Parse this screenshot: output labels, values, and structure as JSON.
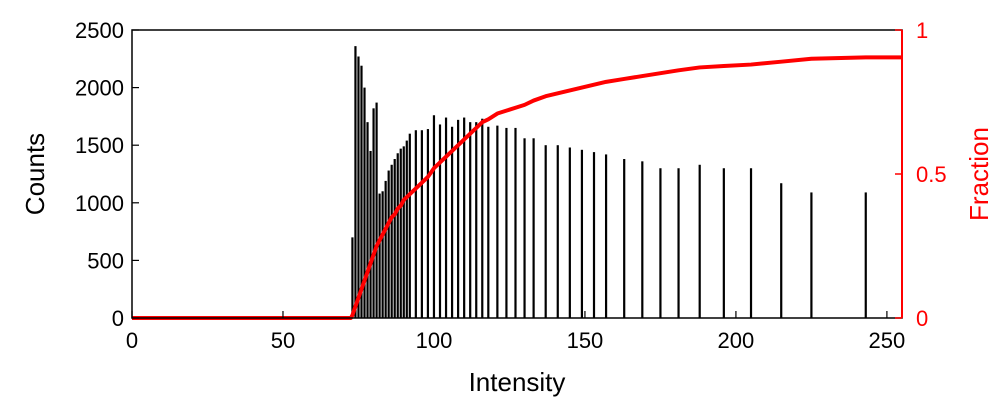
{
  "chart_data": {
    "type": "bar",
    "xlabel": "Intensity",
    "ylabel": "Counts",
    "y2label": "Fraction",
    "xlim": [
      0,
      255
    ],
    "ylim": [
      0,
      2500
    ],
    "y2lim": [
      0,
      1
    ],
    "xticks": [
      "0",
      "50",
      "100",
      "150",
      "200",
      "250"
    ],
    "yticks": [
      "0",
      "500",
      "1000",
      "1500",
      "2000",
      "2500"
    ],
    "y2ticks": [
      "0",
      "0.5",
      "1"
    ],
    "grid": false,
    "series": [
      {
        "type": "bar",
        "axis": "left",
        "color": "#000000",
        "x": [
          73,
          74,
          75,
          76,
          77,
          78,
          79,
          80,
          81,
          82,
          83,
          84,
          85,
          86,
          87,
          88,
          89,
          90,
          91,
          92,
          94,
          96,
          98,
          100,
          102,
          104,
          106,
          108,
          110,
          112,
          114,
          116,
          118,
          121,
          124,
          127,
          130,
          133,
          137,
          141,
          145,
          149,
          153,
          157,
          163,
          169,
          175,
          181,
          188,
          196,
          205,
          215,
          225,
          243
        ],
        "values": [
          700,
          2360,
          2270,
          2190,
          2000,
          1700,
          1450,
          1820,
          1870,
          1080,
          1100,
          1190,
          1280,
          1330,
          1380,
          1430,
          1470,
          1490,
          1540,
          1600,
          1630,
          1630,
          1640,
          1760,
          1680,
          1740,
          1660,
          1720,
          1740,
          1700,
          1700,
          1730,
          1660,
          1670,
          1650,
          1650,
          1560,
          1560,
          1500,
          1500,
          1480,
          1460,
          1440,
          1420,
          1380,
          1360,
          1300,
          1300,
          1330,
          1300,
          1300,
          1170,
          1090,
          1090
        ]
      },
      {
        "type": "line",
        "axis": "right",
        "color": "#ff0000",
        "x": [
          0,
          72.5,
          73,
          74,
          75,
          76,
          77,
          78,
          79,
          80,
          81,
          82,
          83,
          84,
          85,
          86,
          87,
          88,
          89,
          90,
          91,
          92,
          94,
          96,
          98,
          100,
          102,
          104,
          106,
          108,
          110,
          112,
          114,
          116,
          118,
          121,
          124,
          127,
          130,
          133,
          137,
          141,
          145,
          149,
          153,
          157,
          163,
          169,
          175,
          181,
          188,
          196,
          205,
          215,
          225,
          243,
          255
        ],
        "values": [
          0,
          0,
          0.01,
          0.04,
          0.07,
          0.1,
          0.13,
          0.16,
          0.19,
          0.22,
          0.25,
          0.27,
          0.29,
          0.31,
          0.33,
          0.35,
          0.36,
          0.38,
          0.39,
          0.41,
          0.42,
          0.43,
          0.45,
          0.47,
          0.49,
          0.52,
          0.54,
          0.56,
          0.58,
          0.6,
          0.62,
          0.64,
          0.66,
          0.68,
          0.69,
          0.71,
          0.72,
          0.73,
          0.74,
          0.755,
          0.77,
          0.78,
          0.79,
          0.8,
          0.81,
          0.82,
          0.83,
          0.84,
          0.85,
          0.86,
          0.87,
          0.875,
          0.88,
          0.89,
          0.9,
          0.905,
          0.905
        ]
      }
    ]
  }
}
